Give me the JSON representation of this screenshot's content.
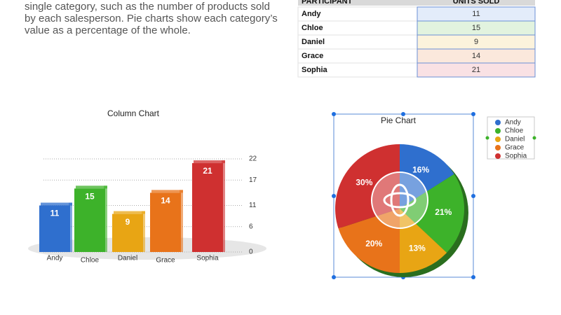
{
  "intro_text": [
    "single category, such as the number of products sold",
    "by each salesperson. Pie charts show each category’s",
    "value as a percentage of the whole."
  ],
  "table": {
    "headers": [
      "PARTICIPANT",
      "UNITS SOLD"
    ],
    "rows": [
      [
        "Andy",
        "11"
      ],
      [
        "Chloe",
        "15"
      ],
      [
        "Daniel",
        "9"
      ],
      [
        "Grace",
        "14"
      ],
      [
        "Sophia",
        "21"
      ]
    ],
    "tints": [
      "#e3ecfa",
      "#e2f3df",
      "#fcf3dc",
      "#fbe8dc",
      "#f9e1e4"
    ]
  },
  "chart_data": [
    {
      "type": "bar",
      "title": "Column Chart",
      "categories": [
        "Andy",
        "Chloe",
        "Daniel",
        "Grace",
        "Sophia"
      ],
      "values": [
        11,
        15,
        9,
        14,
        21
      ],
      "colors": [
        "#2f6fce",
        "#3db22a",
        "#e8a514",
        "#e8731a",
        "#cf3030"
      ],
      "ylim": [
        0,
        22
      ],
      "yticks": [
        0,
        6,
        11,
        17,
        22
      ],
      "grid": true
    },
    {
      "type": "pie",
      "title": "Pie Chart",
      "categories": [
        "Andy",
        "Chloe",
        "Daniel",
        "Grace",
        "Sophia"
      ],
      "values": [
        16,
        21,
        13,
        20,
        30
      ],
      "value_labels": [
        "16%",
        "21%",
        "13%",
        "20%",
        "30%"
      ],
      "colors": [
        "#2f6fce",
        "#3db22a",
        "#e8a514",
        "#e8731a",
        "#cf3030"
      ],
      "legend": "right"
    }
  ]
}
